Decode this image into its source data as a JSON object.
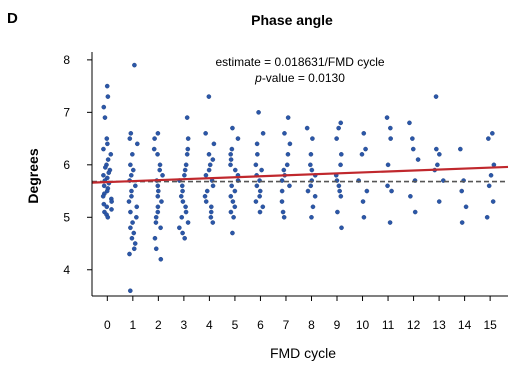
{
  "panel_letter": "D",
  "chart_data": {
    "type": "scatter",
    "title": "Phase angle",
    "xlabel": "FMD cycle",
    "ylabel": "Degrees",
    "annotations": {
      "estimate": "estimate = 0.018631/FMD cycle",
      "pvalue_label": "p",
      "pvalue_rest": "-value = 0.0130"
    },
    "x_ticks": [
      0,
      1,
      2,
      3,
      4,
      5,
      6,
      7,
      8,
      9,
      10,
      11,
      12,
      13,
      14,
      15
    ],
    "y_ticks": [
      4,
      5,
      6,
      7,
      8
    ],
    "xlim": [
      -0.6,
      15.7
    ],
    "ylim": [
      3.5,
      8.15
    ],
    "grid": false,
    "point_color": "#2b57a8",
    "regression_color": "#c0282d",
    "reference_color": "#555555",
    "regression": {
      "x": [
        -0.6,
        15.7
      ],
      "y": [
        5.66,
        5.96
      ]
    },
    "reference_line": {
      "y": 5.68
    },
    "points": [
      {
        "x": 0,
        "y": 7.5
      },
      {
        "x": 0,
        "y": 7.3
      },
      {
        "x": 0,
        "y": 7.1
      },
      {
        "x": 0,
        "y": 6.9
      },
      {
        "x": 0,
        "y": 6.5
      },
      {
        "x": 0,
        "y": 6.4
      },
      {
        "x": 0,
        "y": 6.3
      },
      {
        "x": 0,
        "y": 6.2
      },
      {
        "x": 0,
        "y": 6.1
      },
      {
        "x": 0,
        "y": 6.0
      },
      {
        "x": 0,
        "y": 5.95
      },
      {
        "x": 0,
        "y": 5.9
      },
      {
        "x": 0,
        "y": 5.85
      },
      {
        "x": 0,
        "y": 5.8
      },
      {
        "x": 0,
        "y": 5.75
      },
      {
        "x": 0,
        "y": 5.7
      },
      {
        "x": 0,
        "y": 5.65
      },
      {
        "x": 0,
        "y": 5.6
      },
      {
        "x": 0,
        "y": 5.55
      },
      {
        "x": 0,
        "y": 5.5
      },
      {
        "x": 0,
        "y": 5.45
      },
      {
        "x": 0,
        "y": 5.4
      },
      {
        "x": 0,
        "y": 5.35
      },
      {
        "x": 0,
        "y": 5.3
      },
      {
        "x": 0,
        "y": 5.25
      },
      {
        "x": 0,
        "y": 5.2
      },
      {
        "x": 0,
        "y": 5.15
      },
      {
        "x": 0,
        "y": 5.1
      },
      {
        "x": 0,
        "y": 5.05
      },
      {
        "x": 0,
        "y": 5.0
      },
      {
        "x": 1,
        "y": 7.9
      },
      {
        "x": 1,
        "y": 6.6
      },
      {
        "x": 1,
        "y": 6.5
      },
      {
        "x": 1,
        "y": 6.4
      },
      {
        "x": 1,
        "y": 6.2
      },
      {
        "x": 1,
        "y": 6.0
      },
      {
        "x": 1,
        "y": 5.9
      },
      {
        "x": 1,
        "y": 5.8
      },
      {
        "x": 1,
        "y": 5.7
      },
      {
        "x": 1,
        "y": 5.6
      },
      {
        "x": 1,
        "y": 5.5
      },
      {
        "x": 1,
        "y": 5.4
      },
      {
        "x": 1,
        "y": 5.3
      },
      {
        "x": 1,
        "y": 5.2
      },
      {
        "x": 1,
        "y": 5.1
      },
      {
        "x": 1,
        "y": 5.0
      },
      {
        "x": 1,
        "y": 4.9
      },
      {
        "x": 1,
        "y": 4.8
      },
      {
        "x": 1,
        "y": 4.7
      },
      {
        "x": 1,
        "y": 4.6
      },
      {
        "x": 1,
        "y": 4.5
      },
      {
        "x": 1,
        "y": 4.4
      },
      {
        "x": 1,
        "y": 4.3
      },
      {
        "x": 1,
        "y": 3.6
      },
      {
        "x": 2,
        "y": 6.6
      },
      {
        "x": 2,
        "y": 6.5
      },
      {
        "x": 2,
        "y": 6.3
      },
      {
        "x": 2,
        "y": 6.2
      },
      {
        "x": 2,
        "y": 6.0
      },
      {
        "x": 2,
        "y": 5.9
      },
      {
        "x": 2,
        "y": 5.8
      },
      {
        "x": 2,
        "y": 5.7
      },
      {
        "x": 2,
        "y": 5.6
      },
      {
        "x": 2,
        "y": 5.5
      },
      {
        "x": 2,
        "y": 5.4
      },
      {
        "x": 2,
        "y": 5.3
      },
      {
        "x": 2,
        "y": 5.2
      },
      {
        "x": 2,
        "y": 5.1
      },
      {
        "x": 2,
        "y": 5.0
      },
      {
        "x": 2,
        "y": 4.9
      },
      {
        "x": 2,
        "y": 4.8
      },
      {
        "x": 2,
        "y": 4.6
      },
      {
        "x": 2,
        "y": 4.4
      },
      {
        "x": 2,
        "y": 4.2
      },
      {
        "x": 3,
        "y": 6.9
      },
      {
        "x": 3,
        "y": 6.5
      },
      {
        "x": 3,
        "y": 6.3
      },
      {
        "x": 3,
        "y": 6.2
      },
      {
        "x": 3,
        "y": 6.0
      },
      {
        "x": 3,
        "y": 5.9
      },
      {
        "x": 3,
        "y": 5.8
      },
      {
        "x": 3,
        "y": 5.7
      },
      {
        "x": 3,
        "y": 5.6
      },
      {
        "x": 3,
        "y": 5.5
      },
      {
        "x": 3,
        "y": 5.4
      },
      {
        "x": 3,
        "y": 5.3
      },
      {
        "x": 3,
        "y": 5.2
      },
      {
        "x": 3,
        "y": 5.1
      },
      {
        "x": 3,
        "y": 5.0
      },
      {
        "x": 3,
        "y": 4.9
      },
      {
        "x": 3,
        "y": 4.8
      },
      {
        "x": 3,
        "y": 4.7
      },
      {
        "x": 3,
        "y": 4.6
      },
      {
        "x": 4,
        "y": 7.3
      },
      {
        "x": 4,
        "y": 6.6
      },
      {
        "x": 4,
        "y": 6.4
      },
      {
        "x": 4,
        "y": 6.2
      },
      {
        "x": 4,
        "y": 6.1
      },
      {
        "x": 4,
        "y": 6.0
      },
      {
        "x": 4,
        "y": 5.9
      },
      {
        "x": 4,
        "y": 5.8
      },
      {
        "x": 4,
        "y": 5.7
      },
      {
        "x": 4,
        "y": 5.6
      },
      {
        "x": 4,
        "y": 5.5
      },
      {
        "x": 4,
        "y": 5.4
      },
      {
        "x": 4,
        "y": 5.3
      },
      {
        "x": 4,
        "y": 5.2
      },
      {
        "x": 4,
        "y": 5.1
      },
      {
        "x": 4,
        "y": 5.0
      },
      {
        "x": 4,
        "y": 4.9
      },
      {
        "x": 5,
        "y": 6.7
      },
      {
        "x": 5,
        "y": 6.5
      },
      {
        "x": 5,
        "y": 6.3
      },
      {
        "x": 5,
        "y": 6.2
      },
      {
        "x": 5,
        "y": 6.1
      },
      {
        "x": 5,
        "y": 6.0
      },
      {
        "x": 5,
        "y": 5.9
      },
      {
        "x": 5,
        "y": 5.8
      },
      {
        "x": 5,
        "y": 5.7
      },
      {
        "x": 5,
        "y": 5.6
      },
      {
        "x": 5,
        "y": 5.5
      },
      {
        "x": 5,
        "y": 5.4
      },
      {
        "x": 5,
        "y": 5.3
      },
      {
        "x": 5,
        "y": 5.2
      },
      {
        "x": 5,
        "y": 5.1
      },
      {
        "x": 5,
        "y": 5.0
      },
      {
        "x": 5,
        "y": 4.7
      },
      {
        "x": 6,
        "y": 7.0
      },
      {
        "x": 6,
        "y": 6.6
      },
      {
        "x": 6,
        "y": 6.4
      },
      {
        "x": 6,
        "y": 6.2
      },
      {
        "x": 6,
        "y": 6.0
      },
      {
        "x": 6,
        "y": 5.9
      },
      {
        "x": 6,
        "y": 5.8
      },
      {
        "x": 6,
        "y": 5.7
      },
      {
        "x": 6,
        "y": 5.6
      },
      {
        "x": 6,
        "y": 5.5
      },
      {
        "x": 6,
        "y": 5.4
      },
      {
        "x": 6,
        "y": 5.3
      },
      {
        "x": 6,
        "y": 5.2
      },
      {
        "x": 6,
        "y": 5.1
      },
      {
        "x": 7,
        "y": 6.9
      },
      {
        "x": 7,
        "y": 6.6
      },
      {
        "x": 7,
        "y": 6.4
      },
      {
        "x": 7,
        "y": 6.2
      },
      {
        "x": 7,
        "y": 6.0
      },
      {
        "x": 7,
        "y": 5.9
      },
      {
        "x": 7,
        "y": 5.8
      },
      {
        "x": 7,
        "y": 5.7
      },
      {
        "x": 7,
        "y": 5.6
      },
      {
        "x": 7,
        "y": 5.5
      },
      {
        "x": 7,
        "y": 5.3
      },
      {
        "x": 7,
        "y": 5.1
      },
      {
        "x": 7,
        "y": 5.0
      },
      {
        "x": 8,
        "y": 6.7
      },
      {
        "x": 8,
        "y": 6.5
      },
      {
        "x": 8,
        "y": 6.2
      },
      {
        "x": 8,
        "y": 6.0
      },
      {
        "x": 8,
        "y": 5.9
      },
      {
        "x": 8,
        "y": 5.8
      },
      {
        "x": 8,
        "y": 5.7
      },
      {
        "x": 8,
        "y": 5.6
      },
      {
        "x": 8,
        "y": 5.5
      },
      {
        "x": 8,
        "y": 5.4
      },
      {
        "x": 8,
        "y": 5.2
      },
      {
        "x": 8,
        "y": 5.0
      },
      {
        "x": 9,
        "y": 6.8
      },
      {
        "x": 9,
        "y": 6.7
      },
      {
        "x": 9,
        "y": 6.5
      },
      {
        "x": 9,
        "y": 6.2
      },
      {
        "x": 9,
        "y": 6.0
      },
      {
        "x": 9,
        "y": 5.8
      },
      {
        "x": 9,
        "y": 5.7
      },
      {
        "x": 9,
        "y": 5.6
      },
      {
        "x": 9,
        "y": 5.5
      },
      {
        "x": 9,
        "y": 5.4
      },
      {
        "x": 9,
        "y": 5.1
      },
      {
        "x": 9,
        "y": 4.8
      },
      {
        "x": 10,
        "y": 6.6
      },
      {
        "x": 10,
        "y": 6.3
      },
      {
        "x": 10,
        "y": 6.2
      },
      {
        "x": 10,
        "y": 5.7
      },
      {
        "x": 10,
        "y": 5.5
      },
      {
        "x": 10,
        "y": 5.3
      },
      {
        "x": 10,
        "y": 5.0
      },
      {
        "x": 11,
        "y": 6.9
      },
      {
        "x": 11,
        "y": 6.7
      },
      {
        "x": 11,
        "y": 6.5
      },
      {
        "x": 11,
        "y": 6.0
      },
      {
        "x": 11,
        "y": 5.6
      },
      {
        "x": 11,
        "y": 5.5
      },
      {
        "x": 11,
        "y": 4.9
      },
      {
        "x": 12,
        "y": 6.8
      },
      {
        "x": 12,
        "y": 6.5
      },
      {
        "x": 12,
        "y": 6.3
      },
      {
        "x": 12,
        "y": 6.1
      },
      {
        "x": 12,
        "y": 5.7
      },
      {
        "x": 12,
        "y": 5.4
      },
      {
        "x": 12,
        "y": 5.1
      },
      {
        "x": 13,
        "y": 7.3
      },
      {
        "x": 13,
        "y": 6.3
      },
      {
        "x": 13,
        "y": 6.2
      },
      {
        "x": 13,
        "y": 6.0
      },
      {
        "x": 13,
        "y": 5.9
      },
      {
        "x": 13,
        "y": 5.7
      },
      {
        "x": 13,
        "y": 5.3
      },
      {
        "x": 14,
        "y": 6.3
      },
      {
        "x": 14,
        "y": 5.7
      },
      {
        "x": 14,
        "y": 5.5
      },
      {
        "x": 14,
        "y": 5.2
      },
      {
        "x": 14,
        "y": 4.9
      },
      {
        "x": 15,
        "y": 6.6
      },
      {
        "x": 15,
        "y": 6.5
      },
      {
        "x": 15,
        "y": 6.0
      },
      {
        "x": 15,
        "y": 5.8
      },
      {
        "x": 15,
        "y": 5.6
      },
      {
        "x": 15,
        "y": 5.3
      },
      {
        "x": 15,
        "y": 5.0
      }
    ]
  }
}
